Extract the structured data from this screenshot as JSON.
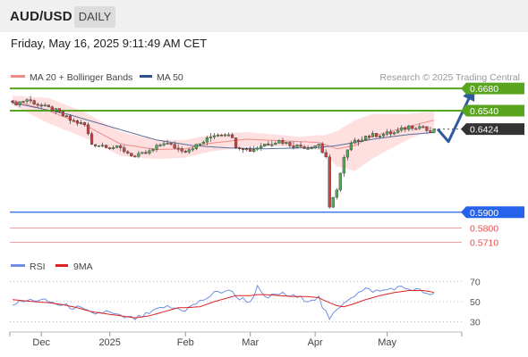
{
  "header": {
    "symbol": "AUD/USD",
    "period": "DAILY"
  },
  "datetime": "Friday, May 16, 2025 9:11:49 AM CET",
  "legend": {
    "ma20_label": "MA 20 + Bollinger Bands",
    "ma50_label": "MA 50",
    "credit": "Research © 2025 Trading Central"
  },
  "colors": {
    "green_level": "#5aa51e",
    "blue_level": "#2563eb",
    "red_level": "#e05050",
    "bollinger_fill": "#fde0df",
    "ma20": "#f08a86",
    "ma50": "#5a6e9c",
    "arrow": "#2f5b9e",
    "up_candle": "#4caf50",
    "down_candle": "#d04040",
    "rsi": "#6f8fe0",
    "rsi_ma": "#dd2222"
  },
  "chart_data": [
    {
      "type": "candlestick",
      "x_tick_labels": [
        "Dec",
        "2025",
        "Feb",
        "Mar",
        "Apr",
        "May"
      ],
      "ylim": [
        0.564,
        0.672
      ],
      "last_price": 0.6424,
      "levels": [
        {
          "value": 0.668,
          "label": "0.6680",
          "kind": "resistance",
          "style": "boxed",
          "color": "#5aa51e"
        },
        {
          "value": 0.654,
          "label": "0.6540",
          "kind": "resistance",
          "style": "boxed",
          "color": "#5aa51e"
        },
        {
          "value": 0.6424,
          "label": "0.6424",
          "kind": "last",
          "style": "boxed",
          "color": "#333333"
        },
        {
          "value": 0.59,
          "label": "0.5900",
          "kind": "pivot",
          "style": "boxed",
          "color": "#2563eb"
        },
        {
          "value": 0.58,
          "label": "0.5800",
          "kind": "support",
          "style": "text",
          "color": "#e05050"
        },
        {
          "value": 0.571,
          "label": "0.5710",
          "kind": "support",
          "style": "text",
          "color": "#e05050"
        }
      ],
      "projection": [
        {
          "i": 118,
          "v": 0.6424
        },
        {
          "i": 121,
          "v": 0.6345
        },
        {
          "i": 128,
          "v": 0.668
        }
      ],
      "ma50_key": [
        [
          0,
          0.659
        ],
        [
          15,
          0.652
        ],
        [
          30,
          0.642
        ],
        [
          40,
          0.6355
        ],
        [
          50,
          0.632
        ],
        [
          60,
          0.6305
        ],
        [
          70,
          0.63
        ],
        [
          80,
          0.6305
        ],
        [
          86,
          0.631
        ],
        [
          90,
          0.632
        ],
        [
          100,
          0.636
        ],
        [
          110,
          0.639
        ],
        [
          117,
          0.6402
        ]
      ],
      "ma20_key": [
        [
          0,
          0.6605
        ],
        [
          10,
          0.654
        ],
        [
          20,
          0.645
        ],
        [
          30,
          0.633
        ],
        [
          40,
          0.6295
        ],
        [
          48,
          0.63
        ],
        [
          55,
          0.6335
        ],
        [
          65,
          0.636
        ],
        [
          75,
          0.635
        ],
        [
          85,
          0.634
        ],
        [
          90,
          0.63
        ],
        [
          95,
          0.632
        ],
        [
          100,
          0.638
        ],
        [
          110,
          0.644
        ],
        [
          117,
          0.648
        ]
      ],
      "bb_width_key": [
        [
          0,
          0.003
        ],
        [
          10,
          0.008
        ],
        [
          20,
          0.008
        ],
        [
          30,
          0.0075
        ],
        [
          40,
          0.006
        ],
        [
          50,
          0.0055
        ],
        [
          60,
          0.005
        ],
        [
          70,
          0.004
        ],
        [
          80,
          0.003
        ],
        [
          86,
          0.005
        ],
        [
          90,
          0.011
        ],
        [
          95,
          0.016
        ],
        [
          100,
          0.014
        ],
        [
          110,
          0.008
        ],
        [
          117,
          0.0055
        ]
      ],
      "close_key": [
        [
          0,
          0.658
        ],
        [
          4,
          0.661
        ],
        [
          8,
          0.657
        ],
        [
          12,
          0.654
        ],
        [
          16,
          0.648
        ],
        [
          20,
          0.645
        ],
        [
          22,
          0.633
        ],
        [
          26,
          0.632
        ],
        [
          30,
          0.63
        ],
        [
          34,
          0.625
        ],
        [
          38,
          0.628
        ],
        [
          42,
          0.634
        ],
        [
          46,
          0.63
        ],
        [
          48,
          0.629
        ],
        [
          52,
          0.633
        ],
        [
          56,
          0.639
        ],
        [
          60,
          0.64
        ],
        [
          62,
          0.632
        ],
        [
          66,
          0.629
        ],
        [
          70,
          0.633
        ],
        [
          74,
          0.635
        ],
        [
          78,
          0.632
        ],
        [
          82,
          0.631
        ],
        [
          85,
          0.633
        ],
        [
          86,
          0.628
        ],
        [
          87,
          0.625
        ],
        [
          88,
          0.592
        ],
        [
          90,
          0.605
        ],
        [
          92,
          0.624
        ],
        [
          94,
          0.633
        ],
        [
          98,
          0.638
        ],
        [
          102,
          0.639
        ],
        [
          106,
          0.64
        ],
        [
          110,
          0.644
        ],
        [
          114,
          0.644
        ],
        [
          116,
          0.639
        ],
        [
          117,
          0.6424
        ]
      ]
    },
    {
      "type": "line",
      "title": "RSI",
      "series": [
        {
          "name": "RSI",
          "color": "#6f8fe0"
        },
        {
          "name": "9MA",
          "color": "#dd2222"
        }
      ],
      "ylim": [
        20,
        80
      ],
      "y_ticks": [
        70,
        50,
        30
      ],
      "rsi_key": [
        [
          0,
          48
        ],
        [
          6,
          52
        ],
        [
          10,
          50
        ],
        [
          14,
          46
        ],
        [
          18,
          44
        ],
        [
          22,
          38
        ],
        [
          26,
          40
        ],
        [
          30,
          35
        ],
        [
          34,
          33
        ],
        [
          38,
          38
        ],
        [
          42,
          45
        ],
        [
          46,
          43
        ],
        [
          48,
          42
        ],
        [
          52,
          50
        ],
        [
          56,
          58
        ],
        [
          60,
          62
        ],
        [
          62,
          55
        ],
        [
          66,
          50
        ],
        [
          68,
          64
        ],
        [
          70,
          53
        ],
        [
          74,
          58
        ],
        [
          78,
          55
        ],
        [
          82,
          52
        ],
        [
          85,
          54
        ],
        [
          86,
          45
        ],
        [
          88,
          32
        ],
        [
          90,
          42
        ],
        [
          92,
          50
        ],
        [
          94,
          55
        ],
        [
          98,
          62
        ],
        [
          102,
          60
        ],
        [
          106,
          64
        ],
        [
          110,
          63
        ],
        [
          114,
          60
        ],
        [
          116,
          55
        ],
        [
          117,
          57
        ]
      ],
      "rsi_ma_key": [
        [
          0,
          52
        ],
        [
          6,
          50
        ],
        [
          10,
          49
        ],
        [
          14,
          47
        ],
        [
          18,
          44
        ],
        [
          22,
          40
        ],
        [
          26,
          38
        ],
        [
          30,
          36
        ],
        [
          34,
          34
        ],
        [
          38,
          36
        ],
        [
          42,
          40
        ],
        [
          46,
          44
        ],
        [
          48,
          44
        ],
        [
          52,
          45
        ],
        [
          56,
          50
        ],
        [
          60,
          54
        ],
        [
          62,
          56
        ],
        [
          66,
          56
        ],
        [
          68,
          57
        ],
        [
          70,
          57
        ],
        [
          74,
          56
        ],
        [
          78,
          55
        ],
        [
          82,
          55
        ],
        [
          85,
          54
        ],
        [
          86,
          52
        ],
        [
          88,
          49
        ],
        [
          90,
          46
        ],
        [
          92,
          45
        ],
        [
          94,
          47
        ],
        [
          98,
          52
        ],
        [
          102,
          56
        ],
        [
          106,
          59
        ],
        [
          110,
          61
        ],
        [
          114,
          61
        ],
        [
          116,
          60
        ],
        [
          117,
          59
        ]
      ]
    }
  ]
}
